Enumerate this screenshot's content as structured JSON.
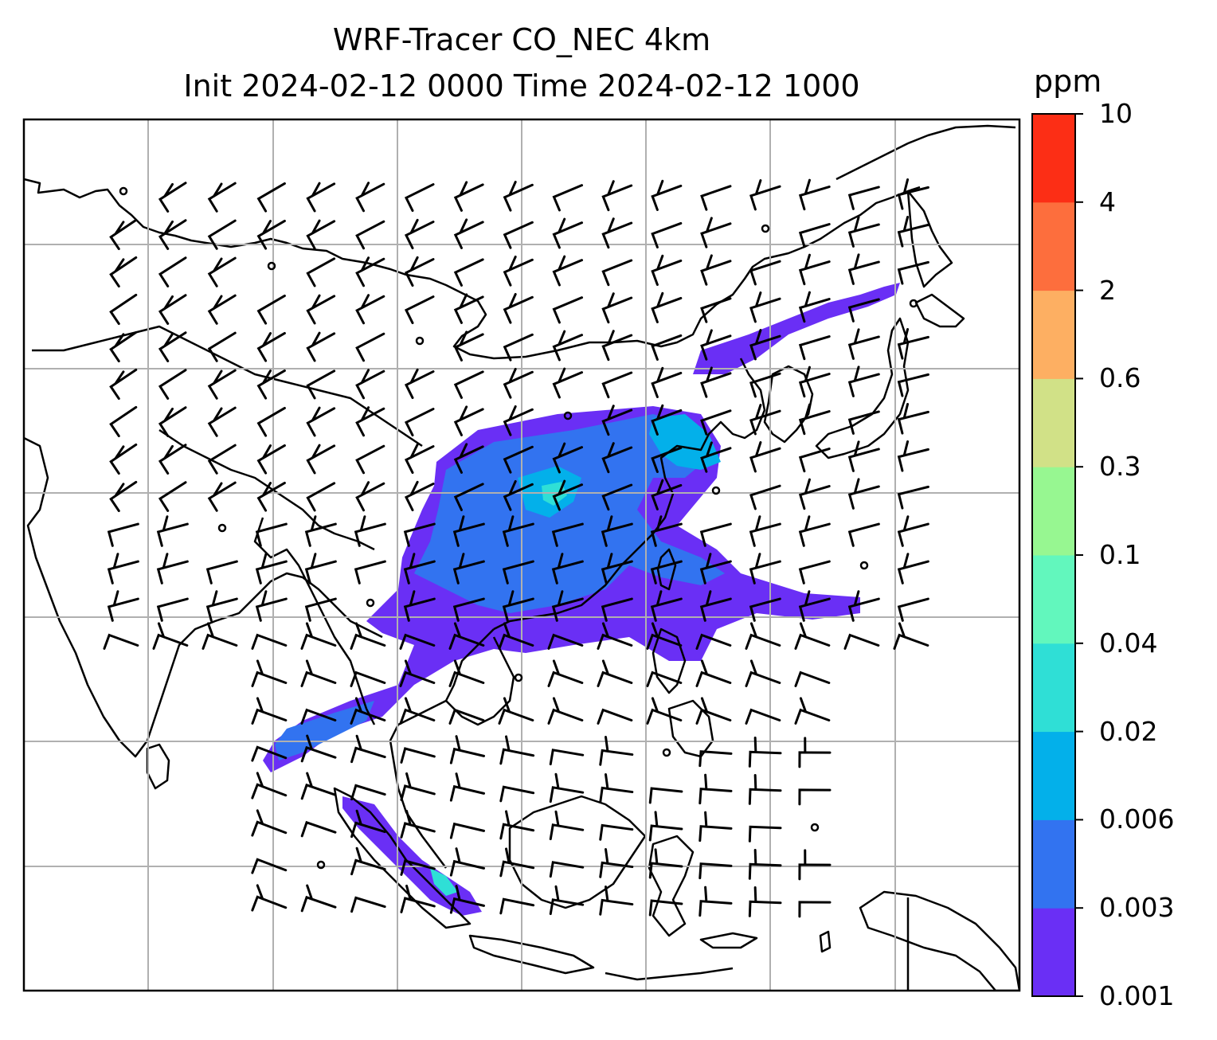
{
  "title_line1": "WRF-Tracer CO_NEC 4km",
  "title_line2": "Init 2024-02-12 0000 Time 2024-02-12 1000",
  "colorbar": {
    "unit": "ppm",
    "levels": [
      "0.001",
      "0.003",
      "0.006",
      "0.02",
      "0.04",
      "0.1",
      "0.3",
      "0.6",
      "2",
      "4",
      "10"
    ],
    "colors": [
      "#6a2ff5",
      "#3273f0",
      "#03b0ea",
      "#2fdfd6",
      "#62f7bd",
      "#97f791",
      "#d1e187",
      "#fdaf62",
      "#fd6e3d",
      "#fc2e15"
    ]
  },
  "map": {
    "grid": "on",
    "coastline_color": "#000000",
    "grid_color": "#b0b0b0",
    "barb_color": "#000000"
  }
}
